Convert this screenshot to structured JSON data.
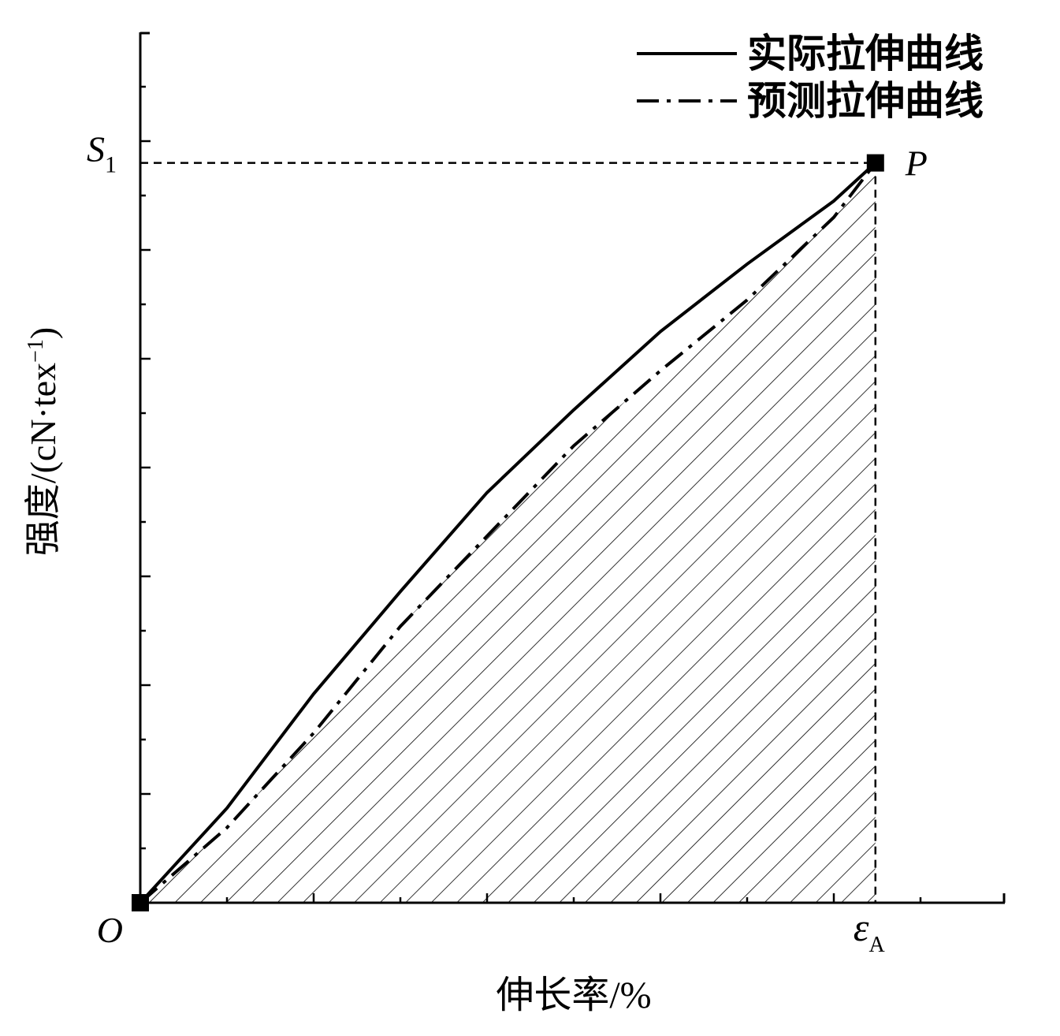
{
  "chart_data": {
    "type": "line",
    "x_label": "伸长率/%",
    "y_label": {
      "text": "强度/(cN·tex",
      "sup": "−1",
      "close": ")"
    },
    "x": [
      0,
      0.5,
      1,
      1.5,
      2,
      2.5,
      3,
      3.5,
      4,
      4.24
    ],
    "series": [
      {
        "name": "实际拉伸曲线",
        "color": "#000000",
        "style": "solid",
        "values": [
          0,
          0.87,
          1.92,
          2.86,
          3.77,
          4.53,
          5.25,
          5.87,
          6.45,
          6.8
        ]
      },
      {
        "name": "预测拉伸曲线",
        "color": "#000000",
        "style": "dashdot",
        "hatch": true,
        "values": [
          0,
          0.69,
          1.56,
          2.54,
          3.37,
          4.2,
          4.89,
          5.54,
          6.3,
          6.8
        ]
      }
    ],
    "points": [
      {
        "label": "O",
        "x": 0,
        "y": 0
      },
      {
        "label": "P",
        "x": 4.24,
        "y": 6.8
      }
    ],
    "y_marker": {
      "label": "S",
      "sub": "1",
      "value": 6.8
    },
    "x_marker": {
      "label": "ε",
      "sub": "A",
      "value": 4.24
    },
    "xlim": [
      0,
      5
    ],
    "ylim": [
      0,
      8
    ],
    "xticks": [
      1,
      2,
      3,
      4
    ],
    "minor_xticks": [
      0.5,
      1.5,
      2.5,
      3.5,
      4.5
    ],
    "yticks": [
      1,
      2,
      3,
      4,
      5,
      6,
      7
    ],
    "minor_yticks": [
      0.5,
      1.5,
      2.5,
      3.5,
      4.5,
      5.5,
      6.5,
      7.5
    ],
    "legend": "upper right"
  }
}
